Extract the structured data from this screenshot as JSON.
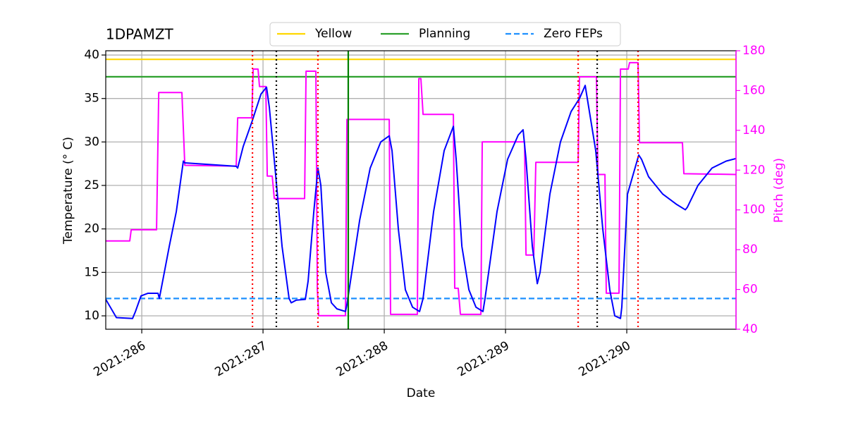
{
  "chart_data": {
    "type": "line",
    "title": "1DPAMZT",
    "xlabel": "Date",
    "ylabel": "Temperature (° C)",
    "y2label": "Pitch (deg)",
    "y2color": "#ff00ff",
    "grid": true,
    "legend": "top",
    "xlim": [
      285.703,
      290.901
    ],
    "xticks": [
      {
        "value": 286,
        "label": "2021:286"
      },
      {
        "value": 287,
        "label": "2021:287"
      },
      {
        "value": 288,
        "label": "2021:288"
      },
      {
        "value": 289,
        "label": "2021:289"
      },
      {
        "value": 290,
        "label": "2021:290"
      }
    ],
    "ylim": [
      8.46,
      40.49
    ],
    "yticks": [
      10,
      15,
      20,
      25,
      30,
      35,
      40
    ],
    "y2lim": [
      40,
      180
    ],
    "y2ticks": [
      40,
      60,
      80,
      100,
      120,
      140,
      160,
      180
    ],
    "series": [
      {
        "color": "#0000ff",
        "axis": "y",
        "x": [
          285.703,
          285.791,
          285.924,
          285.948,
          285.994,
          286.052,
          286.134,
          286.145,
          286.227,
          286.285,
          286.343,
          286.355,
          286.779,
          286.791,
          286.837,
          286.913,
          286.936,
          286.983,
          287.029,
          287.052,
          287.099,
          287.157,
          287.215,
          287.233,
          287.273,
          287.349,
          287.372,
          287.419,
          287.453,
          287.477,
          287.517,
          287.564,
          287.61,
          287.68,
          287.692,
          287.797,
          287.884,
          287.971,
          288.041,
          288.064,
          288.116,
          288.174,
          288.233,
          288.291,
          288.32,
          288.407,
          288.494,
          288.57,
          288.593,
          288.64,
          288.698,
          288.756,
          288.814,
          288.831,
          288.93,
          289.017,
          289.105,
          289.145,
          289.169,
          289.221,
          289.262,
          289.285,
          289.366,
          289.453,
          289.541,
          289.61,
          289.657,
          289.686,
          289.744,
          289.802,
          289.86,
          289.901,
          289.948,
          289.959,
          290.006,
          290.099,
          290.122,
          290.18,
          290.297,
          290.413,
          290.483,
          290.5,
          290.587,
          290.703,
          290.82,
          290.901
        ],
        "values": [
          11.9,
          9.8,
          9.7,
          10.5,
          12.3,
          12.6,
          12.6,
          12.0,
          18,
          22,
          27.8,
          27.6,
          27.2,
          27.0,
          29.5,
          32.5,
          33.5,
          35.5,
          36.3,
          34,
          27,
          18,
          12,
          11.5,
          11.8,
          11.9,
          14,
          22,
          27,
          25,
          15,
          11.5,
          10.8,
          10.5,
          11.3,
          21,
          27,
          30,
          30.7,
          29,
          20,
          13,
          11,
          10.5,
          12,
          22,
          29,
          31.8,
          28,
          18,
          13,
          11,
          10.5,
          12,
          22,
          28,
          30.8,
          31.4,
          28,
          18,
          13.7,
          15,
          24,
          30,
          33.5,
          35,
          36.5,
          34,
          29,
          20,
          13,
          10,
          9.7,
          11,
          24,
          28.5,
          28,
          26,
          24,
          22.8,
          22.2,
          22.5,
          25,
          27,
          27.8,
          28.1
        ]
      },
      {
        "color": "#ff00ff",
        "axis": "y2",
        "x": [
          285.703,
          285.901,
          285.913,
          286.122,
          286.14,
          286.331,
          286.355,
          286.779,
          286.791,
          286.907,
          286.919,
          286.959,
          286.971,
          287.023,
          287.035,
          287.076,
          287.093,
          287.343,
          287.355,
          287.436,
          287.448,
          287.459,
          287.68,
          287.692,
          288.041,
          288.052,
          288.273,
          288.285,
          288.302,
          288.32,
          288.57,
          288.581,
          288.61,
          288.628,
          288.797,
          288.808,
          289.157,
          289.169,
          289.233,
          289.25,
          289.599,
          289.61,
          289.75,
          289.762,
          289.82,
          289.831,
          289.936,
          289.948,
          290.012,
          290.023,
          290.093,
          290.105,
          290.459,
          290.471,
          290.901
        ],
        "values": [
          84.4,
          84.4,
          90,
          90,
          159,
          159,
          122.4,
          122,
          146.3,
          146.3,
          170.8,
          170.8,
          162,
          162,
          117,
          117,
          105.7,
          105.7,
          169.7,
          169.7,
          60,
          46.8,
          46.8,
          145.5,
          145.5,
          47.5,
          47.5,
          166,
          166,
          148,
          148,
          60.6,
          60.6,
          47.5,
          47.5,
          134.2,
          134.2,
          77.3,
          77.3,
          123.9,
          123.9,
          166.9,
          166.9,
          117.8,
          117.8,
          58.1,
          58.1,
          170.8,
          170.8,
          174,
          174,
          133.8,
          133.8,
          118.2,
          117.8
        ]
      }
    ],
    "hlines": [
      {
        "name": "Yellow",
        "color": "#ffd700",
        "value": 39.5,
        "dash": "solid"
      },
      {
        "name": "Planning",
        "color": "#2ca02c",
        "value": 37.5,
        "dash": "solid"
      },
      {
        "name": "Zero FEPs",
        "color": "#1e90ff",
        "value": 12,
        "dash": "dashed"
      }
    ],
    "vlines": [
      {
        "x": 286.913,
        "color": "#ff0000",
        "dash": "dotted"
      },
      {
        "x": 287.453,
        "color": "#ff0000",
        "dash": "dotted"
      },
      {
        "x": 289.599,
        "color": "#ff0000",
        "dash": "dotted"
      },
      {
        "x": 290.093,
        "color": "#ff0000",
        "dash": "dotted"
      },
      {
        "x": 287.11,
        "color": "#000000",
        "dash": "dotted"
      },
      {
        "x": 289.756,
        "color": "#000000",
        "dash": "dotted"
      },
      {
        "x": 287.703,
        "color": "#008000",
        "dash": "solid"
      }
    ]
  }
}
